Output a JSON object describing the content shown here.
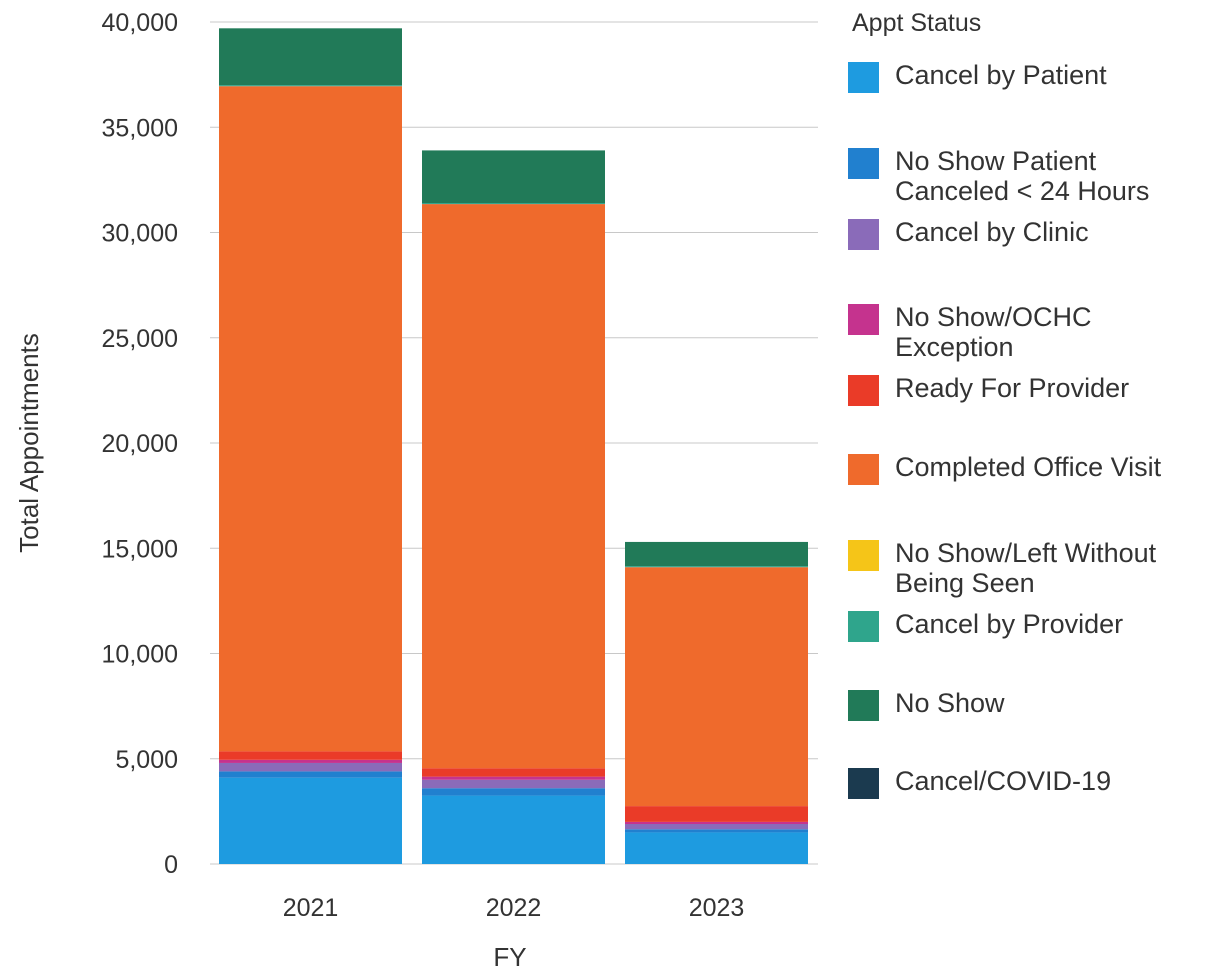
{
  "chart_data": {
    "type": "bar",
    "stacked": true,
    "xlabel": "FY",
    "ylabel": "Total Appointments",
    "ylim": [
      0,
      40000
    ],
    "yticks": [
      "0",
      "5,000",
      "10,000",
      "15,000",
      "20,000",
      "25,000",
      "30,000",
      "35,000",
      "40,000"
    ],
    "ytick_values": [
      0,
      5000,
      10000,
      15000,
      20000,
      25000,
      30000,
      35000,
      40000
    ],
    "categories": [
      "2021",
      "2022",
      "2023"
    ],
    "grid": true,
    "legend_title": "Appt Status",
    "legend_position": "right",
    "series": [
      {
        "name": "Cancel by Patient",
        "color": "#1e9be0",
        "values": [
          4100,
          3250,
          1500
        ]
      },
      {
        "name": "No Show Patient\nCanceled < 24 Hours",
        "color": "#2180cf",
        "values": [
          300,
          350,
          150
        ]
      },
      {
        "name": "Cancel by Clinic",
        "color": "#8a6bb9",
        "values": [
          400,
          400,
          250
        ]
      },
      {
        "name": "No Show/OCHC\nException",
        "color": "#c5338e",
        "values": [
          150,
          150,
          100
        ]
      },
      {
        "name": "Ready For Provider",
        "color": "#ea3b28",
        "values": [
          400,
          400,
          750
        ]
      },
      {
        "name": "Completed Office Visit",
        "color": "#ef6a2c",
        "values": [
          31600,
          26800,
          11350
        ]
      },
      {
        "name": "No Show/Left Without\nBeing Seen",
        "color": "#f5c518",
        "values": [
          0,
          0,
          0
        ]
      },
      {
        "name": "Cancel by Provider",
        "color": "#2fa58c",
        "values": [
          50,
          50,
          50
        ]
      },
      {
        "name": "No Show",
        "color": "#217a58",
        "values": [
          2700,
          2500,
          1150
        ]
      },
      {
        "name": "Cancel/COVID-19",
        "color": "#1b3a4f",
        "values": [
          0,
          0,
          0
        ]
      }
    ]
  }
}
